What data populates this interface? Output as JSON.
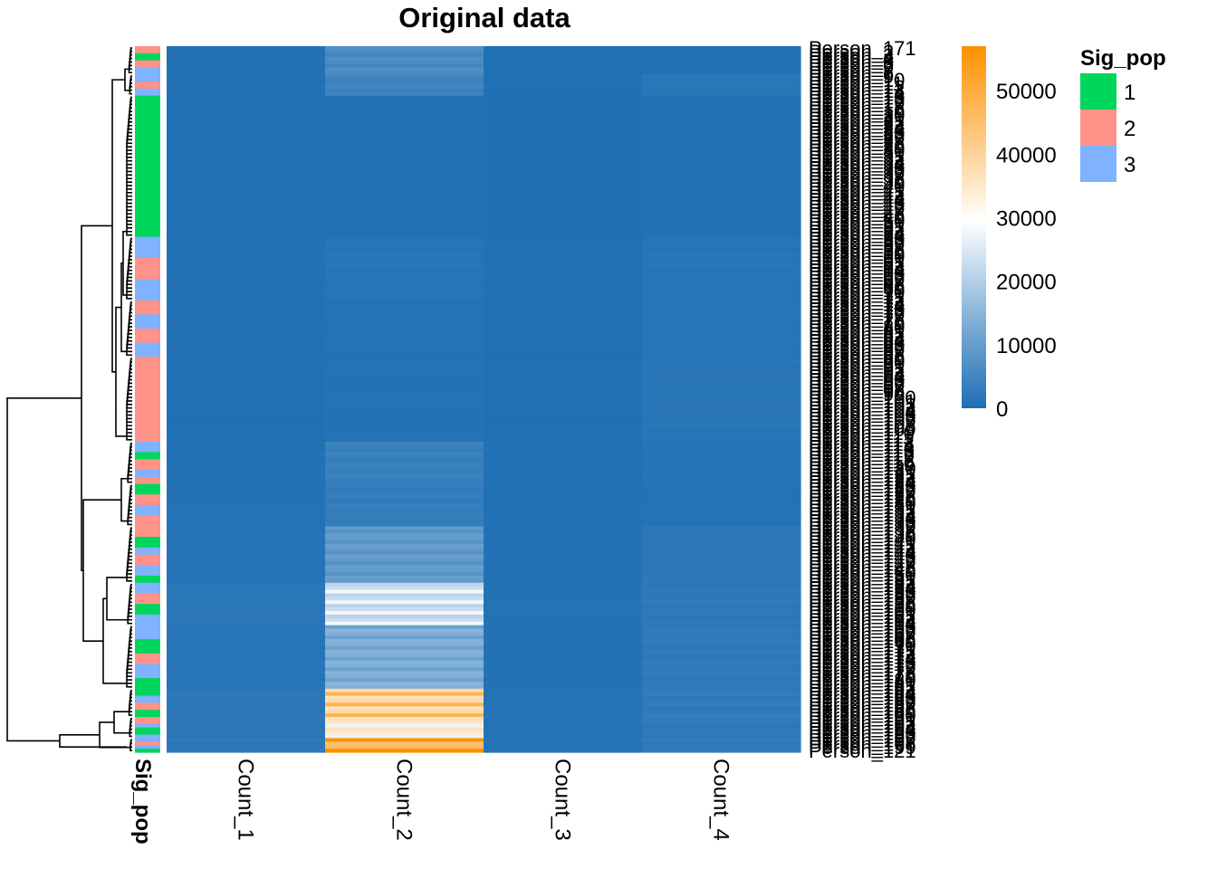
{
  "chart_data": {
    "type": "heatmap",
    "title": "Original data",
    "columns": [
      "Count_1",
      "Count_2",
      "Count_3",
      "Count_4"
    ],
    "annotation": {
      "name": "Sig_pop",
      "levels": [
        {
          "label": "1",
          "color": "#00D65C"
        },
        {
          "label": "2",
          "color": "#FF9289"
        },
        {
          "label": "3",
          "color": "#7FB2FF"
        }
      ]
    },
    "colorbar": {
      "min": 0,
      "max": 57000,
      "ticks": [
        0,
        10000,
        20000,
        30000,
        40000,
        50000
      ],
      "colors": [
        {
          "value": 0,
          "color": "#1F6FB4"
        },
        {
          "value": 15000,
          "color": "#8AB5DA"
        },
        {
          "value": 29500,
          "color": "#FFFFFF"
        },
        {
          "value": 42000,
          "color": "#FDCB87"
        },
        {
          "value": 57000,
          "color": "#FF9100"
        }
      ]
    },
    "row_blocks": [
      {
        "n": 8,
        "pop": [
          2,
          1,
          2,
          3
        ],
        "values": [
          500,
          6000,
          300,
          400
        ]
      },
      {
        "n": 6,
        "pop": [
          3,
          2,
          3
        ],
        "values": [
          500,
          4500,
          300,
          1500
        ]
      },
      {
        "n": 40,
        "pop": [
          1
        ],
        "values": [
          300,
          300,
          200,
          500
        ]
      },
      {
        "n": 18,
        "pop": [
          3,
          2,
          3
        ],
        "values": [
          400,
          1200,
          300,
          1200
        ]
      },
      {
        "n": 16,
        "pop": [
          2,
          3,
          2,
          3
        ],
        "values": [
          400,
          800,
          300,
          1200
        ]
      },
      {
        "n": 24,
        "pop": [
          2
        ],
        "values": [
          300,
          700,
          300,
          1400
        ]
      },
      {
        "n": 12,
        "pop": [
          3,
          1,
          2,
          3,
          2
        ],
        "values": [
          600,
          3500,
          400,
          1000
        ]
      },
      {
        "n": 12,
        "pop": [
          1,
          2,
          3,
          2
        ],
        "values": [
          700,
          3000,
          400,
          800
        ]
      },
      {
        "n": 16,
        "pop": [
          2,
          1,
          3,
          2,
          3,
          1
        ],
        "values": [
          1000,
          9000,
          500,
          1800
        ]
      },
      {
        "n": 12,
        "pop": [
          3,
          2,
          1,
          3
        ],
        "values": [
          1600,
          24000,
          700,
          2000
        ]
      },
      {
        "n": 18,
        "pop": [
          3,
          1,
          2,
          3,
          1
        ],
        "values": [
          1200,
          13000,
          600,
          2200
        ]
      },
      {
        "n": 8,
        "pop": [
          1,
          3,
          2,
          1
        ],
        "values": [
          1800,
          41000,
          800,
          2500
        ]
      },
      {
        "n": 6,
        "pop": [
          2,
          3,
          1,
          3
        ],
        "values": [
          1800,
          33000,
          800,
          2200
        ]
      },
      {
        "n": 4,
        "pop": [
          3,
          2,
          3,
          1
        ],
        "values": [
          2000,
          50000,
          900,
          2400
        ]
      }
    ],
    "row_label_first": "Person_171",
    "row_label_last": "Person_121",
    "row_label_prefix": "Person_"
  }
}
